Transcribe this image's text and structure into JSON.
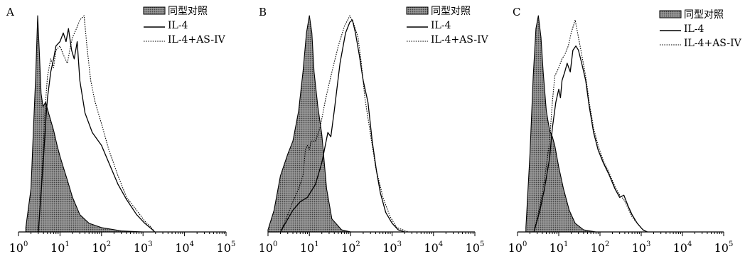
{
  "chart_data": [
    {
      "type": "line",
      "panel_label": "A",
      "x_scale": "log",
      "xlim": [
        1,
        100000
      ],
      "x_tick_labels": [
        {
          "base": "10",
          "exp": "0"
        },
        {
          "base": "10",
          "exp": "1"
        },
        {
          "base": "10",
          "exp": "2"
        },
        {
          "base": "10",
          "exp": "3"
        },
        {
          "base": "10",
          "exp": "4"
        },
        {
          "base": "10",
          "exp": "5"
        }
      ],
      "legend": {
        "position": "top-right"
      },
      "series": [
        {
          "name": "同型对照",
          "style": "filled-stipple",
          "color": "#555555",
          "points": [
            [
              1.5,
              0.02
            ],
            [
              2,
              0.2
            ],
            [
              2.3,
              0.48
            ],
            [
              2.6,
              0.72
            ],
            [
              2.9,
              1.0
            ],
            [
              3.2,
              0.82
            ],
            [
              3.5,
              0.64
            ],
            [
              3.9,
              0.58
            ],
            [
              4.5,
              0.6
            ],
            [
              5.5,
              0.54
            ],
            [
              7,
              0.47
            ],
            [
              8.5,
              0.4
            ],
            [
              10,
              0.35
            ],
            [
              12,
              0.3
            ],
            [
              15,
              0.24
            ],
            [
              20,
              0.16
            ],
            [
              30,
              0.08
            ],
            [
              50,
              0.04
            ],
            [
              100,
              0.02
            ],
            [
              300,
              0.005
            ],
            [
              1000,
              0
            ]
          ]
        },
        {
          "name": "IL-4",
          "style": "solid",
          "color": "#000000",
          "points": [
            [
              3,
              0
            ],
            [
              3.5,
              0.18
            ],
            [
              4,
              0.34
            ],
            [
              4.5,
              0.5
            ],
            [
              5,
              0.62
            ],
            [
              6,
              0.74
            ],
            [
              7,
              0.8
            ],
            [
              8,
              0.86
            ],
            [
              10,
              0.88
            ],
            [
              12,
              0.92
            ],
            [
              14,
              0.88
            ],
            [
              16,
              0.94
            ],
            [
              19,
              0.84
            ],
            [
              22,
              0.8
            ],
            [
              26,
              0.88
            ],
            [
              30,
              0.7
            ],
            [
              40,
              0.55
            ],
            [
              60,
              0.46
            ],
            [
              100,
              0.4
            ],
            [
              150,
              0.32
            ],
            [
              250,
              0.22
            ],
            [
              400,
              0.15
            ],
            [
              700,
              0.08
            ],
            [
              1100,
              0.04
            ],
            [
              1700,
              0.01
            ],
            [
              1900,
              0
            ]
          ]
        },
        {
          "name": "IL-4+AS-IV",
          "style": "dotted",
          "color": "#000000",
          "points": [
            [
              3,
              0
            ],
            [
              3.5,
              0.2
            ],
            [
              4,
              0.42
            ],
            [
              4.5,
              0.6
            ],
            [
              5,
              0.72
            ],
            [
              6,
              0.8
            ],
            [
              7,
              0.76
            ],
            [
              8,
              0.84
            ],
            [
              10,
              0.86
            ],
            [
              12,
              0.82
            ],
            [
              15,
              0.78
            ],
            [
              18,
              0.86
            ],
            [
              20,
              0.9
            ],
            [
              25,
              0.94
            ],
            [
              30,
              0.98
            ],
            [
              38,
              1.0
            ],
            [
              45,
              0.85
            ],
            [
              55,
              0.7
            ],
            [
              70,
              0.6
            ],
            [
              100,
              0.5
            ],
            [
              150,
              0.38
            ],
            [
              250,
              0.26
            ],
            [
              400,
              0.16
            ],
            [
              700,
              0.1
            ],
            [
              1100,
              0.05
            ],
            [
              1600,
              0.02
            ],
            [
              1900,
              0
            ]
          ]
        }
      ]
    },
    {
      "type": "line",
      "panel_label": "B",
      "x_scale": "log",
      "xlim": [
        1,
        100000
      ],
      "x_tick_labels": [
        {
          "base": "10",
          "exp": "0"
        },
        {
          "base": "10",
          "exp": "1"
        },
        {
          "base": "10",
          "exp": "2"
        },
        {
          "base": "10",
          "exp": "3"
        },
        {
          "base": "10",
          "exp": "4"
        },
        {
          "base": "10",
          "exp": "5"
        }
      ],
      "legend": {
        "position": "top-right"
      },
      "series": [
        {
          "name": "同型对照",
          "style": "filled-stipple",
          "color": "#555555",
          "points": [
            [
              1,
              0.01
            ],
            [
              1.4,
              0.1
            ],
            [
              2,
              0.26
            ],
            [
              3,
              0.36
            ],
            [
              4,
              0.42
            ],
            [
              5.5,
              0.56
            ],
            [
              7,
              0.74
            ],
            [
              8.5,
              0.92
            ],
            [
              10,
              1.0
            ],
            [
              11.5,
              0.92
            ],
            [
              13,
              0.74
            ],
            [
              16,
              0.58
            ],
            [
              20,
              0.45
            ],
            [
              26,
              0.2
            ],
            [
              35,
              0.06
            ],
            [
              60,
              0.01
            ],
            [
              100,
              0
            ],
            [
              200,
              0
            ]
          ]
        },
        {
          "name": "IL-4",
          "style": "solid",
          "color": "#000000",
          "points": [
            [
              2,
              0
            ],
            [
              3,
              0.06
            ],
            [
              4,
              0.1
            ],
            [
              6,
              0.14
            ],
            [
              9,
              0.16
            ],
            [
              14,
              0.22
            ],
            [
              20,
              0.32
            ],
            [
              28,
              0.46
            ],
            [
              33,
              0.44
            ],
            [
              40,
              0.56
            ],
            [
              55,
              0.78
            ],
            [
              75,
              0.92
            ],
            [
              95,
              0.97
            ],
            [
              110,
              0.98
            ],
            [
              130,
              0.92
            ],
            [
              160,
              0.82
            ],
            [
              200,
              0.7
            ],
            [
              260,
              0.6
            ],
            [
              330,
              0.42
            ],
            [
              420,
              0.28
            ],
            [
              520,
              0.18
            ],
            [
              700,
              0.09
            ],
            [
              1000,
              0.04
            ],
            [
              1400,
              0.01
            ],
            [
              2000,
              0
            ]
          ]
        },
        {
          "name": "IL-4+AS-IV",
          "style": "dotted",
          "color": "#000000",
          "points": [
            [
              2,
              0
            ],
            [
              3,
              0.08
            ],
            [
              4,
              0.14
            ],
            [
              5.5,
              0.2
            ],
            [
              7,
              0.26
            ],
            [
              8,
              0.38
            ],
            [
              9,
              0.4
            ],
            [
              10,
              0.38
            ],
            [
              11,
              0.42
            ],
            [
              14,
              0.42
            ],
            [
              18,
              0.48
            ],
            [
              25,
              0.62
            ],
            [
              35,
              0.74
            ],
            [
              50,
              0.86
            ],
            [
              70,
              0.95
            ],
            [
              95,
              1.0
            ],
            [
              120,
              0.96
            ],
            [
              150,
              0.9
            ],
            [
              180,
              0.78
            ],
            [
              220,
              0.62
            ],
            [
              300,
              0.45
            ],
            [
              400,
              0.3
            ],
            [
              600,
              0.16
            ],
            [
              900,
              0.07
            ],
            [
              1300,
              0.02
            ],
            [
              2500,
              0
            ]
          ]
        }
      ]
    },
    {
      "type": "line",
      "panel_label": "C",
      "x_scale": "log",
      "xlim": [
        1,
        100000
      ],
      "x_tick_labels": [
        {
          "base": "10",
          "exp": "0"
        },
        {
          "base": "10",
          "exp": "1"
        },
        {
          "base": "10",
          "exp": "2"
        },
        {
          "base": "10",
          "exp": "3"
        },
        {
          "base": "10",
          "exp": "4"
        },
        {
          "base": "10",
          "exp": "5"
        }
      ],
      "legend": {
        "position": "top-right"
      },
      "series": [
        {
          "name": "同型对照",
          "style": "filled-stipple",
          "color": "#555555",
          "points": [
            [
              1.6,
              0.02
            ],
            [
              2,
              0.36
            ],
            [
              2.4,
              0.72
            ],
            [
              2.8,
              0.94
            ],
            [
              3.2,
              1.0
            ],
            [
              3.7,
              0.9
            ],
            [
              4.2,
              0.74
            ],
            [
              5,
              0.56
            ],
            [
              6,
              0.47
            ],
            [
              7,
              0.44
            ],
            [
              8,
              0.4
            ],
            [
              10,
              0.3
            ],
            [
              13,
              0.2
            ],
            [
              18,
              0.1
            ],
            [
              25,
              0.04
            ],
            [
              40,
              0.01
            ],
            [
              80,
              0
            ]
          ]
        },
        {
          "name": "IL-4",
          "style": "solid",
          "color": "#000000",
          "points": [
            [
              2.5,
              0
            ],
            [
              3.5,
              0.1
            ],
            [
              4.5,
              0.2
            ],
            [
              6,
              0.34
            ],
            [
              7,
              0.48
            ],
            [
              8.5,
              0.6
            ],
            [
              10,
              0.66
            ],
            [
              11,
              0.62
            ],
            [
              12,
              0.7
            ],
            [
              14,
              0.74
            ],
            [
              16,
              0.78
            ],
            [
              19,
              0.74
            ],
            [
              22,
              0.84
            ],
            [
              26,
              0.86
            ],
            [
              30,
              0.84
            ],
            [
              36,
              0.78
            ],
            [
              45,
              0.7
            ],
            [
              55,
              0.58
            ],
            [
              70,
              0.46
            ],
            [
              90,
              0.38
            ],
            [
              120,
              0.32
            ],
            [
              170,
              0.26
            ],
            [
              230,
              0.2
            ],
            [
              300,
              0.16
            ],
            [
              380,
              0.17
            ],
            [
              480,
              0.12
            ],
            [
              600,
              0.08
            ],
            [
              800,
              0.04
            ],
            [
              1100,
              0.01
            ],
            [
              1400,
              0
            ]
          ]
        },
        {
          "name": "IL-4+AS-IV",
          "style": "dotted",
          "color": "#000000",
          "points": [
            [
              2.5,
              0
            ],
            [
              3.5,
              0.12
            ],
            [
              4.5,
              0.24
            ],
            [
              6,
              0.42
            ],
            [
              7,
              0.6
            ],
            [
              8,
              0.72
            ],
            [
              10,
              0.76
            ],
            [
              12,
              0.8
            ],
            [
              14,
              0.82
            ],
            [
              17,
              0.86
            ],
            [
              20,
              0.92
            ],
            [
              25,
              0.98
            ],
            [
              30,
              0.9
            ],
            [
              36,
              0.82
            ],
            [
              45,
              0.72
            ],
            [
              55,
              0.6
            ],
            [
              70,
              0.48
            ],
            [
              90,
              0.4
            ],
            [
              120,
              0.33
            ],
            [
              170,
              0.27
            ],
            [
              230,
              0.21
            ],
            [
              300,
              0.17
            ],
            [
              380,
              0.15
            ],
            [
              480,
              0.11
            ],
            [
              600,
              0.07
            ],
            [
              800,
              0.04
            ],
            [
              1100,
              0.01
            ],
            [
              1400,
              0
            ]
          ]
        }
      ]
    }
  ]
}
